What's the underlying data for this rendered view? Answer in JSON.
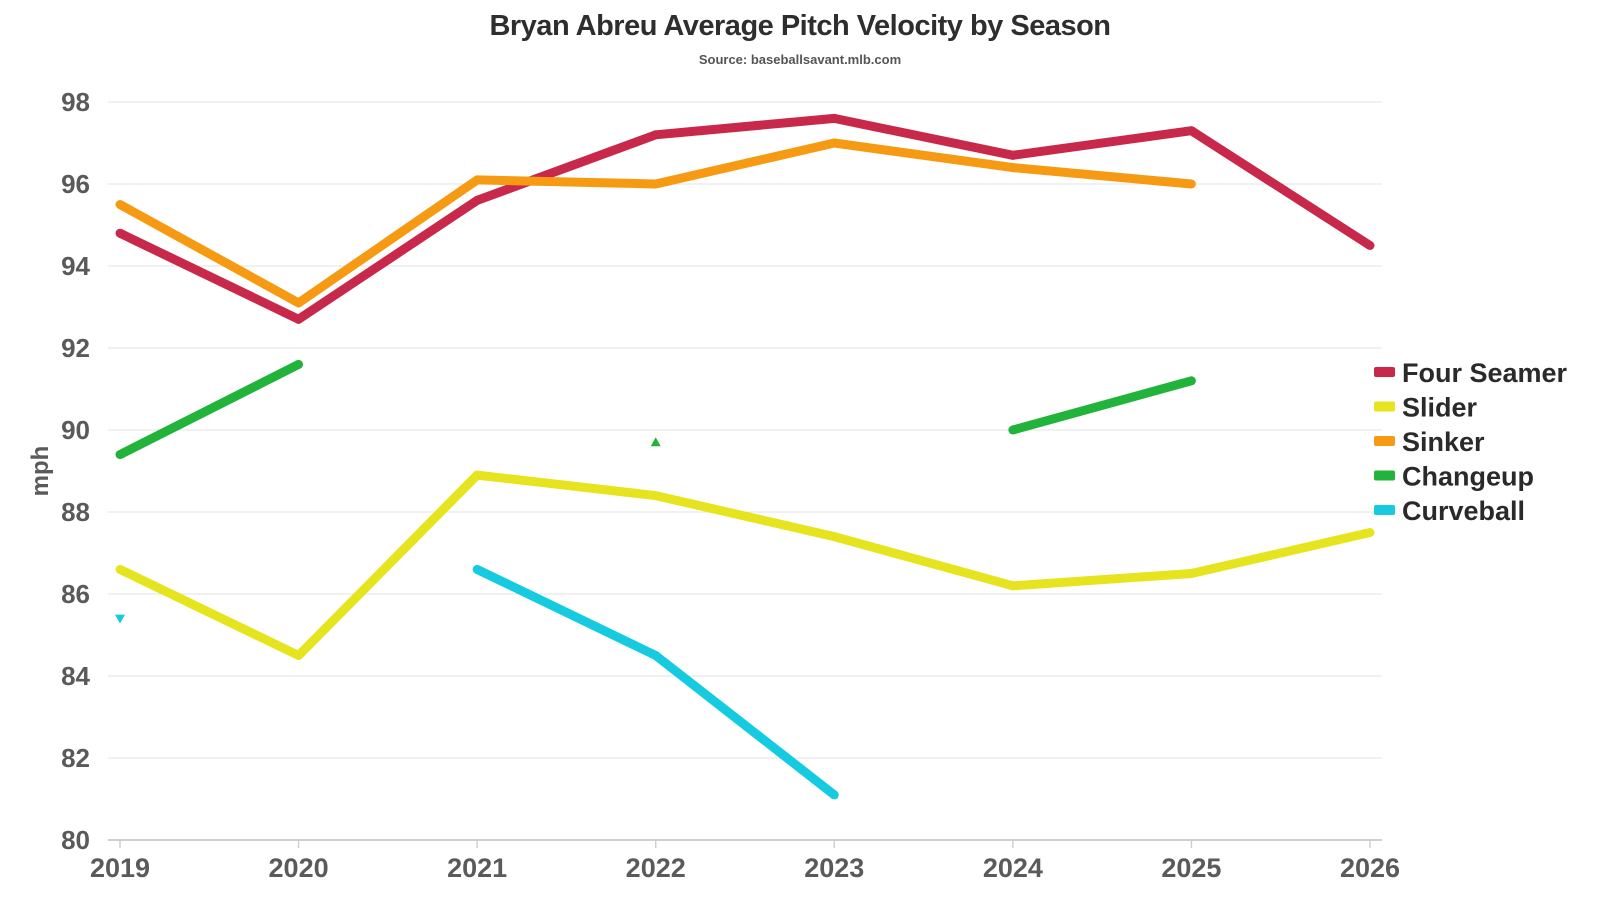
{
  "chart_data": {
    "type": "line",
    "title": "Bryan Abreu Average Pitch Velocity by Season",
    "subtitle": "Source: baseballsavant.mlb.com",
    "xlabel": "",
    "ylabel": "mph",
    "x": [
      2019,
      2020,
      2021,
      2022,
      2023,
      2024,
      2025,
      2026
    ],
    "ylim": [
      80,
      98
    ],
    "yticks": [
      80,
      82,
      84,
      86,
      88,
      90,
      92,
      94,
      96,
      98
    ],
    "grid": true,
    "legend_position": "right",
    "series": [
      {
        "name": "Four Seamer",
        "color": "#c8284a",
        "values": [
          94.8,
          92.7,
          95.6,
          97.2,
          97.6,
          96.7,
          97.3,
          94.5
        ]
      },
      {
        "name": "Slider",
        "color": "#e5e41f",
        "values": [
          86.6,
          84.5,
          88.9,
          88.4,
          87.4,
          86.2,
          86.5,
          87.5
        ]
      },
      {
        "name": "Sinker",
        "color": "#f59a12",
        "values": [
          95.5,
          93.1,
          96.1,
          96.0,
          97.0,
          96.4,
          96.0,
          null
        ]
      },
      {
        "name": "Changeup",
        "color": "#22b33a",
        "values": [
          89.4,
          91.6,
          null,
          89.7,
          null,
          90.0,
          91.2,
          null
        ]
      },
      {
        "name": "Curveball",
        "color": "#16cbe0",
        "values": [
          85.4,
          null,
          86.6,
          84.5,
          81.1,
          null,
          null,
          null
        ]
      }
    ]
  }
}
